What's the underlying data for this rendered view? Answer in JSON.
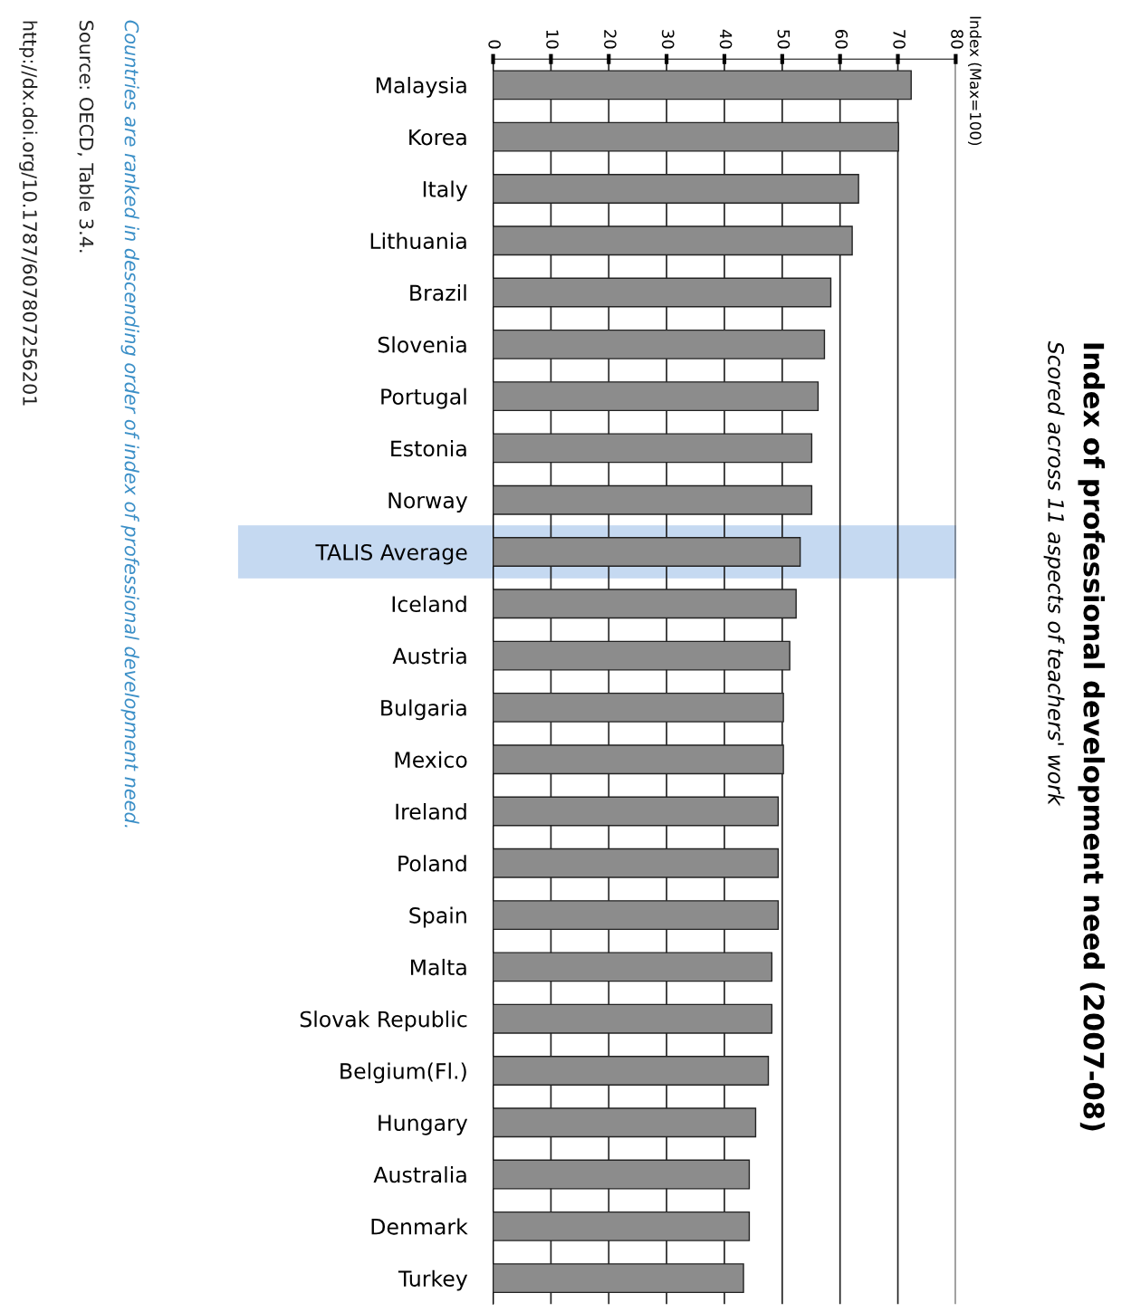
{
  "chart_data": {
    "type": "bar",
    "orientation": "horizontal",
    "title": "Index of professional development need (2007-08)",
    "subtitle": "Scored across 11 aspects of teachers' work",
    "categories": [
      "Malaysia",
      "Korea",
      "Italy",
      "Lithuania",
      "Brazil",
      "Slovenia",
      "Portugal",
      "Estonia",
      "Norway",
      "TALIS Average",
      "Iceland",
      "Austria",
      "Bulgaria",
      "Mexico",
      "Ireland",
      "Poland",
      "Spain",
      "Malta",
      "Slovak Republic",
      "Belgium(Fl.)",
      "Hungary",
      "Australia",
      "Denmark",
      "Turkey"
    ],
    "values": [
      72.3,
      70.1,
      63.2,
      62.1,
      58.4,
      57.3,
      56.2,
      55.1,
      55.1,
      53.1,
      52.4,
      51.3,
      50.2,
      50.2,
      49.3,
      49.3,
      49.3,
      48.2,
      48.2,
      47.6,
      45.4,
      44.3,
      44.3,
      43.3
    ],
    "color": "#8c8c8c",
    "xlim": [
      0,
      80
    ],
    "xticks": [
      0,
      10,
      20,
      30,
      40,
      50,
      60,
      70,
      80
    ],
    "grid": "x",
    "bands": [
      {
        "axis": "y",
        "from": "TALIS Average",
        "to": "TALIS Average",
        "color": "#c5d9f1"
      }
    ],
    "annotations": [
      "Countries are ranked in descending order of index of professional development need.",
      "Source: OECD, Table 3.4.",
      "http://dx.doi.org/10.1787/607807256201",
      "Index (Max=100)"
    ]
  }
}
